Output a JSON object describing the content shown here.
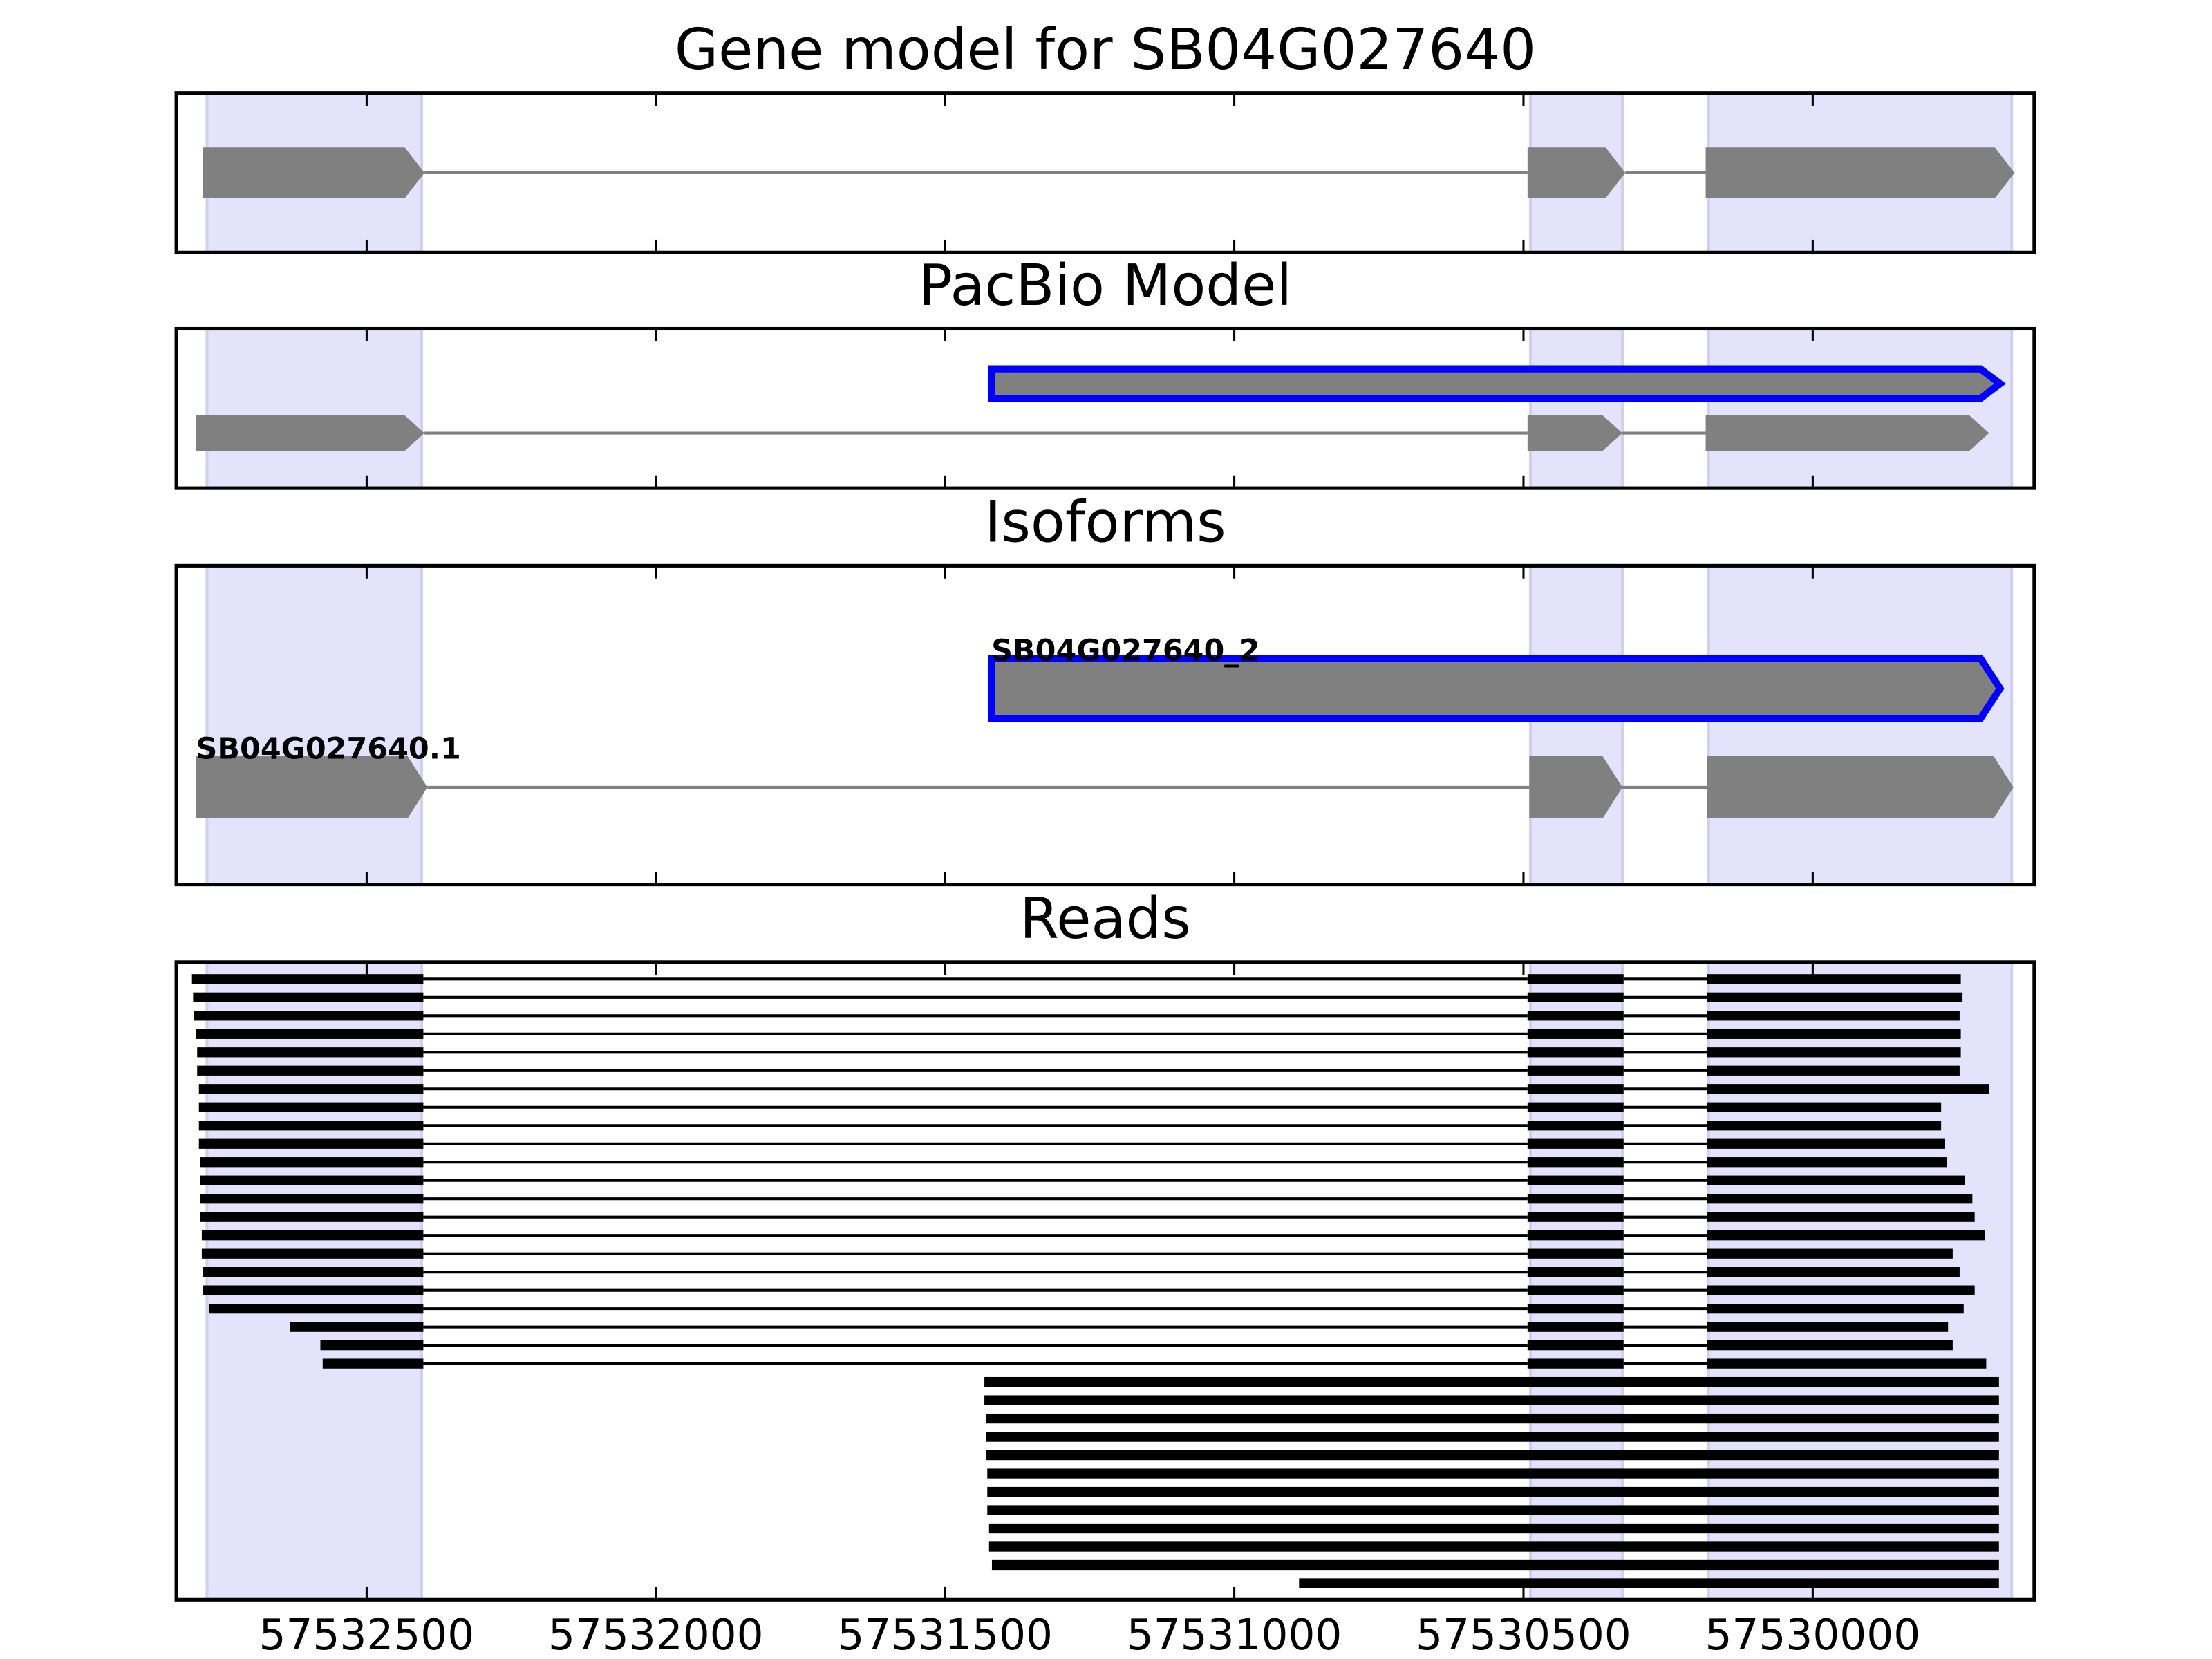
{
  "chart_data": [
    {
      "type": "gene-track",
      "title": "Gene model for SB04G027640",
      "xlim": [
        57532829,
        57529617
      ],
      "highlights": [
        [
          57532776,
          57532405
        ],
        [
          57530488,
          57530329
        ],
        [
          57530180,
          57529656
        ]
      ],
      "features": [
        {
          "color": "#808080",
          "blocks": [
            [
              57532783,
              57532400
            ],
            [
              57530493,
              57530324
            ],
            [
              57530185,
              57529651
            ]
          ]
        }
      ]
    },
    {
      "type": "gene-track",
      "title": "PacBio Model",
      "xlim": [
        57532829,
        57529617
      ],
      "highlights": [
        [
          57532776,
          57532405
        ],
        [
          57530488,
          57530329
        ],
        [
          57530180,
          57529656
        ]
      ],
      "features": [
        {
          "color": "#808080",
          "edge_color": "#0000ff",
          "blocks": [
            [
              57531420,
              57529676
            ]
          ]
        },
        {
          "color": "#808080",
          "blocks": [
            [
              57532795,
              57532400
            ],
            [
              57530493,
              57530329
            ],
            [
              57530185,
              57529695
            ]
          ]
        }
      ]
    },
    {
      "type": "gene-track",
      "title": "Isoforms",
      "xlim": [
        57532829,
        57529617
      ],
      "highlights": [
        [
          57532776,
          57532405
        ],
        [
          57530488,
          57530329
        ],
        [
          57530180,
          57529656
        ]
      ],
      "features": [
        {
          "label": "SB04G027640_2",
          "color": "#808080",
          "edge_color": "#0000ff",
          "blocks": [
            [
              57531420,
              57529676
            ]
          ]
        },
        {
          "label": "SB04G027640.1",
          "color": "#808080",
          "blocks": [
            [
              57532795,
              57532395
            ],
            [
              57530490,
              57530329
            ],
            [
              57530183,
              57529653
            ]
          ]
        }
      ]
    },
    {
      "type": "reads",
      "title": "Reads",
      "xlim": [
        57532829,
        57529617
      ],
      "xticks": [
        57532500,
        57532000,
        57531500,
        57531000,
        57530500,
        57530000
      ],
      "highlights": [
        [
          57532776,
          57532405
        ],
        [
          57530488,
          57530329
        ],
        [
          57530180,
          57529656
        ]
      ],
      "color": "#000000",
      "reads": [
        [
          [
            57532802,
            57532402
          ],
          [
            57530493,
            57530327
          ],
          [
            57530183,
            57529744
          ]
        ],
        [
          [
            57532800,
            57532402
          ],
          [
            57530493,
            57530327
          ],
          [
            57530183,
            57529741
          ]
        ],
        [
          [
            57532798,
            57532402
          ],
          [
            57530493,
            57530327
          ],
          [
            57530183,
            57529746
          ]
        ],
        [
          [
            57532795,
            57532402
          ],
          [
            57530493,
            57530327
          ],
          [
            57530183,
            57529744
          ]
        ],
        [
          [
            57532793,
            57532402
          ],
          [
            57530493,
            57530327
          ],
          [
            57530183,
            57529744
          ]
        ],
        [
          [
            57532793,
            57532402
          ],
          [
            57530493,
            57530327
          ],
          [
            57530183,
            57529746
          ]
        ],
        [
          [
            57532790,
            57532402
          ],
          [
            57530493,
            57530327
          ],
          [
            57530183,
            57529695
          ]
        ],
        [
          [
            57532790,
            57532402
          ],
          [
            57530493,
            57530327
          ],
          [
            57530183,
            57529778
          ]
        ],
        [
          [
            57532790,
            57532402
          ],
          [
            57530493,
            57530327
          ],
          [
            57530183,
            57529778
          ]
        ],
        [
          [
            57532790,
            57532402
          ],
          [
            57530493,
            57530327
          ],
          [
            57530183,
            57529771
          ]
        ],
        [
          [
            57532788,
            57532402
          ],
          [
            57530493,
            57530327
          ],
          [
            57530183,
            57529768
          ]
        ],
        [
          [
            57532788,
            57532402
          ],
          [
            57530493,
            57530327
          ],
          [
            57530183,
            57529737
          ]
        ],
        [
          [
            57532788,
            57532402
          ],
          [
            57530493,
            57530327
          ],
          [
            57530183,
            57529724
          ]
        ],
        [
          [
            57532788,
            57532402
          ],
          [
            57530493,
            57530327
          ],
          [
            57530183,
            57529720
          ]
        ],
        [
          [
            57532785,
            57532402
          ],
          [
            57530493,
            57530327
          ],
          [
            57530183,
            57529702
          ]
        ],
        [
          [
            57532785,
            57532402
          ],
          [
            57530493,
            57530327
          ],
          [
            57530183,
            57529758
          ]
        ],
        [
          [
            57532783,
            57532402
          ],
          [
            57530493,
            57530327
          ],
          [
            57530183,
            57529746
          ]
        ],
        [
          [
            57532783,
            57532402
          ],
          [
            57530493,
            57530327
          ],
          [
            57530183,
            57529720
          ]
        ],
        [
          [
            57532773,
            57532402
          ],
          [
            57530493,
            57530327
          ],
          [
            57530183,
            57529739
          ]
        ],
        [
          [
            57532632,
            57532402
          ],
          [
            57530493,
            57530327
          ],
          [
            57530183,
            57529766
          ]
        ],
        [
          [
            57532580,
            57532402
          ],
          [
            57530493,
            57530327
          ],
          [
            57530183,
            57529758
          ]
        ],
        [
          [
            57532576,
            57532402
          ],
          [
            57530493,
            57530327
          ],
          [
            57530183,
            57529700
          ]
        ],
        [
          [
            57531432,
            57529678
          ]
        ],
        [
          [
            57531432,
            57529678
          ]
        ],
        [
          [
            57531429,
            57529678
          ]
        ],
        [
          [
            57531429,
            57529678
          ]
        ],
        [
          [
            57531429,
            57529678
          ]
        ],
        [
          [
            57531427,
            57529678
          ]
        ],
        [
          [
            57531427,
            57529678
          ]
        ],
        [
          [
            57531427,
            57529678
          ]
        ],
        [
          [
            57531424,
            57529678
          ]
        ],
        [
          [
            57531424,
            57529678
          ]
        ],
        [
          [
            57531419,
            57529678
          ]
        ],
        [
          [
            57530888,
            57529678
          ]
        ]
      ]
    }
  ]
}
